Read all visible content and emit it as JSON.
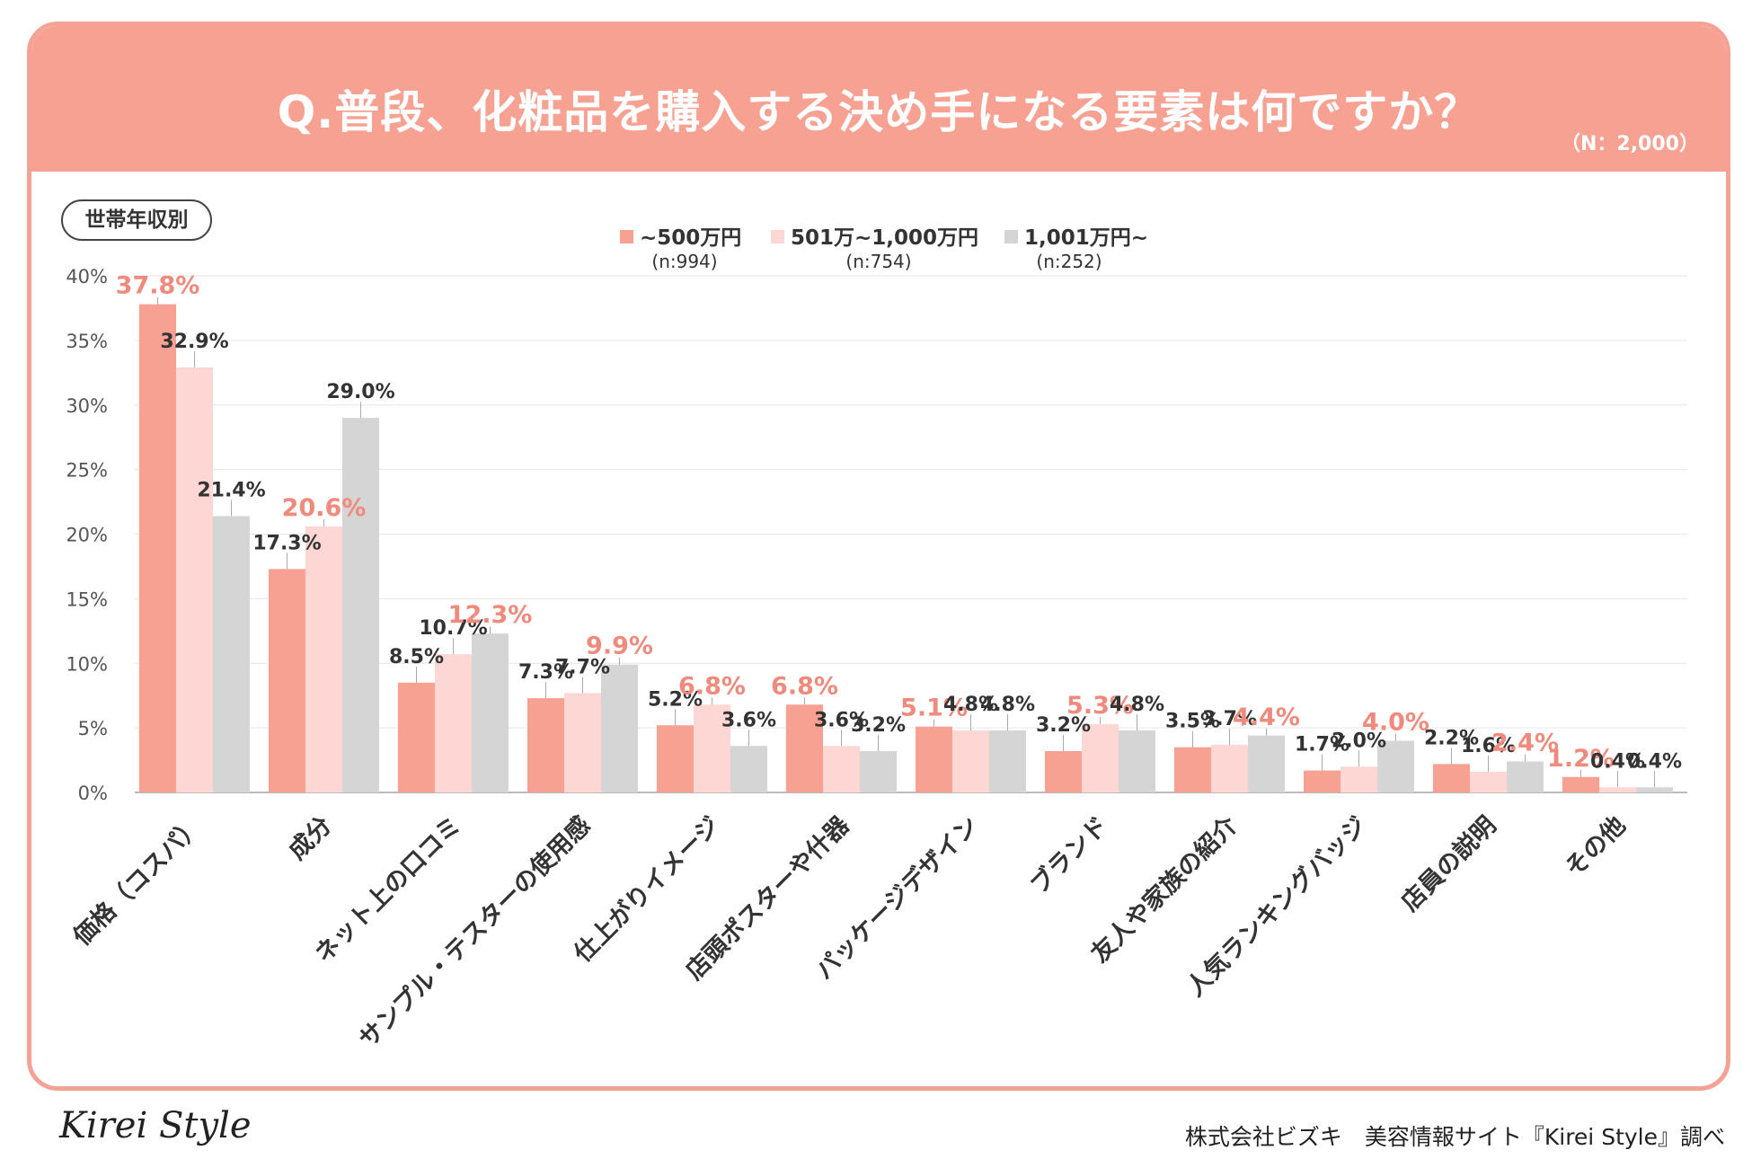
{
  "header": {
    "title": "Q.普段、化粧品を購入する決め手になる要素は何ですか？",
    "sample_size": "（N：2,000）"
  },
  "group_label": "世帯年収別",
  "footer": {
    "logo": "Kirei Style",
    "credit": "株式会社ビズキ　美容情報サイト『Kirei Style』調べ"
  },
  "colors": {
    "header_bg": "#f7a193",
    "series_1": "#f7a193",
    "series_2": "#fdd7d3",
    "series_3": "#d5d5d5",
    "highlight_label": "#ef8a7c",
    "normal_label": "#333333"
  },
  "chart_data": {
    "type": "bar",
    "categories": [
      "価格（コスパ）",
      "成分",
      "ネット上の口コミ",
      "サンプル・テスターの使用感",
      "仕上がりイメージ",
      "店頭ポスターや什器",
      "パッケージデザイン",
      "ブランド",
      "友人や家族の紹介",
      "人気ランキングバッジ",
      "店員の説明",
      "その他"
    ],
    "series": [
      {
        "name": "~500万円",
        "n": "(n:994)",
        "values": [
          37.8,
          17.3,
          8.5,
          7.3,
          5.2,
          6.8,
          5.1,
          3.2,
          3.5,
          1.7,
          2.2,
          1.2
        ],
        "labels": [
          "37.8%",
          "17.3%",
          "8.5%",
          "7.3%",
          "5.2%",
          "6.8%",
          "5.1%",
          "3.2%",
          "3.5%",
          "1.7%",
          "2.2%",
          "1.2%"
        ]
      },
      {
        "name": "501万~1,000万円",
        "n": "(n:754)",
        "values": [
          32.9,
          20.6,
          10.7,
          7.7,
          6.8,
          3.6,
          4.8,
          5.3,
          3.7,
          2.0,
          1.6,
          0.4
        ],
        "labels": [
          "32.9%",
          "20.6%",
          "10.7%",
          "7.7%",
          "6.8%",
          "3.6%",
          "4.8%",
          "5.3%",
          "3.7%",
          "2.0%",
          "1.6%",
          "0.4%"
        ]
      },
      {
        "name": "1,001万円~",
        "n": "(n:252)",
        "values": [
          21.4,
          29.0,
          12.3,
          9.9,
          3.6,
          3.2,
          4.8,
          4.8,
          4.4,
          4.0,
          2.4,
          0.4
        ],
        "labels": [
          "21.4%",
          "29.0%",
          "12.3%",
          "9.9%",
          "3.6%",
          "3.2%",
          "4.8%",
          "4.8%",
          "4.4%",
          "4.0%",
          "2.4%",
          "0.4%"
        ]
      }
    ],
    "highlight_series_index": [
      0,
      1,
      2,
      2,
      1,
      0,
      0,
      1,
      2,
      2,
      2,
      0
    ],
    "y_ticks": [
      "0%",
      "5%",
      "10%",
      "15%",
      "20%",
      "25%",
      "30%",
      "35%",
      "40%"
    ],
    "ylim": [
      0,
      40
    ],
    "legend_position": "top-center",
    "grid": true
  }
}
